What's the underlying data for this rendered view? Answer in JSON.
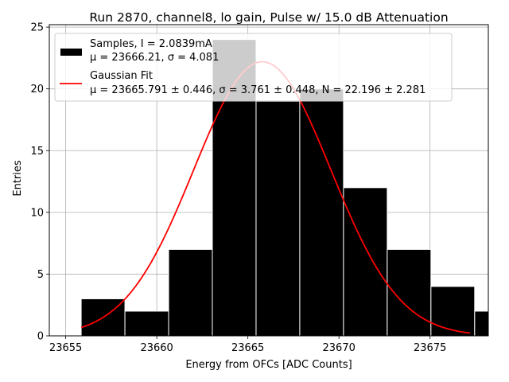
{
  "chart_data": {
    "type": "bar",
    "title": "Run 2870, channel8, lo gain, Pulse w/ 15.0 dB Attenuation",
    "xlabel": "Energy from OFCs [ADC Counts]",
    "ylabel": "Entries",
    "xlim": [
      23654.1,
      23678.2
    ],
    "ylim": [
      0,
      25.2
    ],
    "xticks": [
      23655,
      23660,
      23665,
      23670,
      23675
    ],
    "yticks": [
      0,
      5,
      10,
      15,
      20,
      25
    ],
    "grid": true,
    "legend_position": "top-left",
    "bins": [
      {
        "left": 23655.85,
        "right": 23658.25,
        "count": 3
      },
      {
        "left": 23658.25,
        "right": 23660.65,
        "count": 2
      },
      {
        "left": 23660.65,
        "right": 23663.05,
        "count": 7
      },
      {
        "left": 23663.05,
        "right": 23665.45,
        "count": 24
      },
      {
        "left": 23665.45,
        "right": 23667.85,
        "count": 19
      },
      {
        "left": 23667.85,
        "right": 23670.25,
        "count": 20
      },
      {
        "left": 23670.25,
        "right": 23672.65,
        "count": 12
      },
      {
        "left": 23672.65,
        "right": 23675.05,
        "count": 7
      },
      {
        "left": 23675.05,
        "right": 23677.45,
        "count": 4
      },
      {
        "left": 23677.45,
        "right": 23679.85,
        "count": 2
      }
    ],
    "fit": {
      "mu": 23665.791,
      "sigma": 3.761,
      "N": 22.196,
      "x_range": [
        23655.85,
        23677.2
      ],
      "color": "#ff0000"
    },
    "series": [
      {
        "name": "Samples",
        "label_lines": [
          "Samples, I = 2.0839mA",
          "μ = 23666.21, σ = 4.081"
        ],
        "color": "#000000"
      },
      {
        "name": "Gaussian Fit",
        "label_lines": [
          "Gaussian Fit",
          "μ = 23665.791 ± 0.446, σ = 3.761 ± 0.448, N = 22.196 ± 2.281"
        ],
        "color": "#ff0000"
      }
    ]
  }
}
